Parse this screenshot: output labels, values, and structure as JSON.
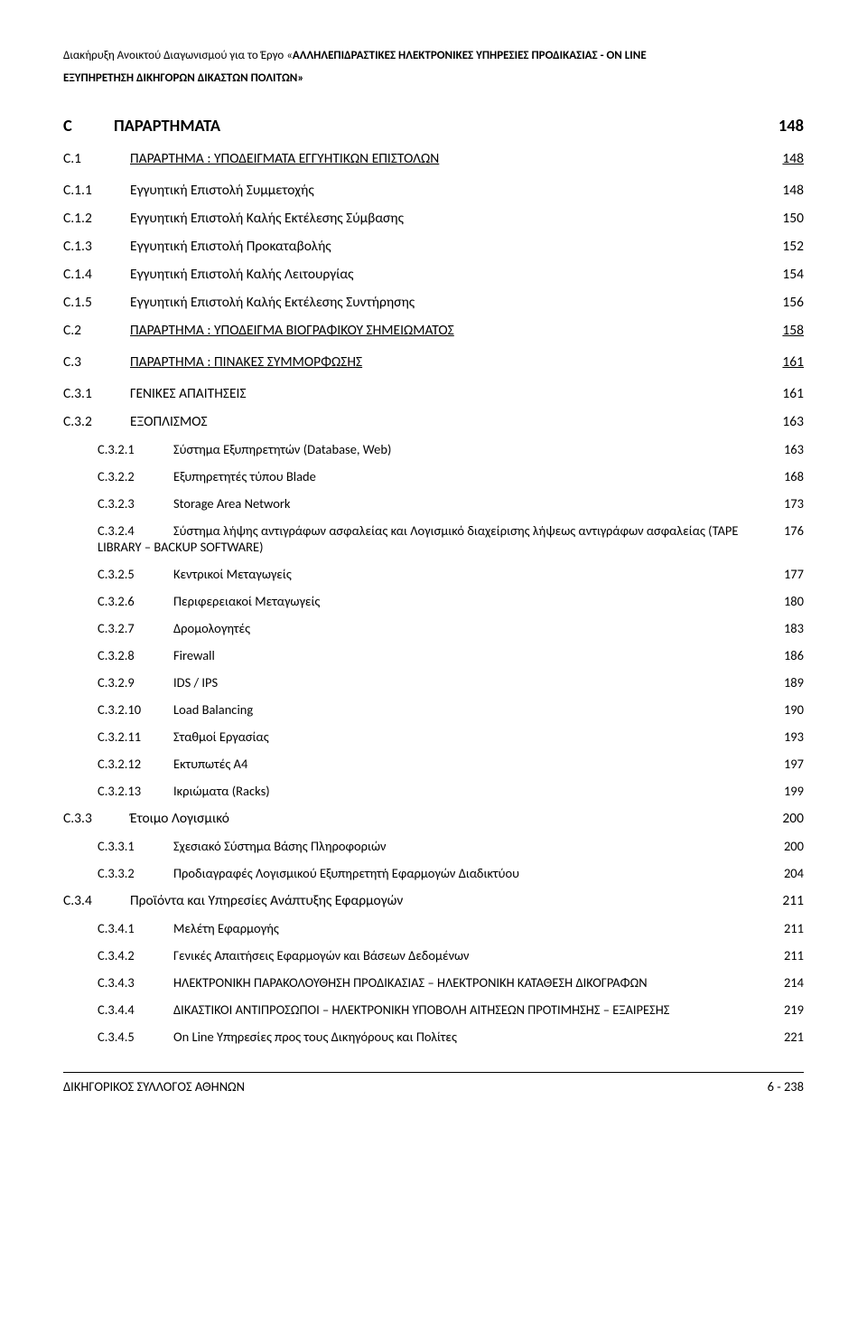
{
  "header": {
    "line1_a": "Διακήρυξη Ανοικτού Διαγωνισμού για το Έργο  «",
    "line1_b": "ΑΛΛΗΛΕΠΙΔΡΑΣΤΙΚΕΣ ΗΛΕΚΤΡΟΝΙΚΕΣ ΥΠΗΡΕΣΙΕΣ ΠΡΟΔΙΚΑΣΙΑΣ - ON LINE",
    "line2": "ΕΞΥΠΗΡΕΤΗΣΗ ΔΙΚΗΓΟΡΩΝ ΔΙΚΑΣΤΩΝ ΠΟΛΙΤΩΝ»"
  },
  "toc": [
    {
      "lvl": 0,
      "num": "C",
      "title": "ΠΑΡΑΡΤΗΜΑΤΑ",
      "page": "148",
      "bold": true,
      "ul": false,
      "fs": "fs18"
    },
    {
      "lvl": 1,
      "num": "C.1",
      "title": "ΠΑΡΑΡΤΗΜΑ : ΥΠΟΔΕΙΓΜΑΤΑ ΕΓΓΥΗΤΙΚΩΝ ΕΠΙΣΤΟΛΩΝ",
      "page": "148",
      "bold": false,
      "ul": true,
      "fs": "fs15"
    },
    {
      "lvl": 2,
      "num": "C.1.1",
      "title": "Εγγυητική Επιστολή Συμμετοχής",
      "page": "148",
      "bold": false,
      "ul": false,
      "fs": "fs15"
    },
    {
      "lvl": 2,
      "num": "C.1.2",
      "title": "Εγγυητική Επιστολή Καλής Εκτέλεσης Σύμβασης",
      "page": "150",
      "bold": false,
      "ul": false,
      "fs": "fs15"
    },
    {
      "lvl": 2,
      "num": "C.1.3",
      "title": "Εγγυητική Επιστολή Προκαταβολής",
      "page": "152",
      "bold": false,
      "ul": false,
      "fs": "fs15"
    },
    {
      "lvl": 2,
      "num": "C.1.4",
      "title": "Εγγυητική Επιστολή Καλής Λειτουργίας",
      "page": "154",
      "bold": false,
      "ul": false,
      "fs": "fs15"
    },
    {
      "lvl": 2,
      "num": "C.1.5",
      "title": "Εγγυητική Επιστολή Καλής Εκτέλεσης Συντήρησης",
      "page": "156",
      "bold": false,
      "ul": false,
      "fs": "fs15"
    },
    {
      "lvl": 1,
      "num": "C.2",
      "title": "ΠΑΡΑΡΤΗΜΑ : ΥΠΟΔΕΙΓΜΑ ΒΙΟΓΡΑΦΙΚΟΥ ΣΗΜΕΙΩΜΑΤΟΣ",
      "page": "158",
      "bold": false,
      "ul": true,
      "fs": "fs15"
    },
    {
      "lvl": 1,
      "num": "C.3",
      "title": "ΠΑΡΑΡΤΗΜΑ : ΠΙΝΑΚΕΣ ΣΥΜΜΟΡΦΩΣΗΣ",
      "page": "161",
      "bold": false,
      "ul": true,
      "fs": "fs15"
    },
    {
      "lvl": 2,
      "num": "C.3.1",
      "title": "ΓΕΝΙΚΕΣ ΑΠΑΙΤΗΣΕΙΣ",
      "page": "161",
      "bold": false,
      "ul": false,
      "fs": "fs15"
    },
    {
      "lvl": 2,
      "num": "C.3.2",
      "title": "ΕΞΟΠΛΙΣΜΟΣ",
      "page": "163",
      "bold": false,
      "ul": false,
      "fs": "fs15"
    },
    {
      "lvl": 3,
      "num": "C.3.2.1",
      "title": "Σύστημα Εξυπηρετητών (Database, Web)",
      "page": "163",
      "bold": false,
      "ul": false,
      "fs": "fs14"
    },
    {
      "lvl": 3,
      "num": "C.3.2.2",
      "title": "Εξυπηρετητές τύπου Blade",
      "page": "168",
      "bold": false,
      "ul": false,
      "fs": "fs14"
    },
    {
      "lvl": 3,
      "num": "C.3.2.3",
      "title": "Storage Area Network",
      "page": "173",
      "bold": false,
      "ul": false,
      "fs": "fs14"
    },
    {
      "lvl": 3,
      "num": "C.3.2.4",
      "title": "Σύστημα λήψης αντιγράφων ασφαλείας και Λογισμικό διαχείρισης λήψεως αντιγράφων ασφαλείας (TAPE LIBRARY – BACKUP SOFTWARE)",
      "page": "176",
      "bold": false,
      "ul": false,
      "fs": "fs14"
    },
    {
      "lvl": 3,
      "num": "C.3.2.5",
      "title": "Κεντρικοί Μεταγωγείς",
      "page": "177",
      "bold": false,
      "ul": false,
      "fs": "fs14"
    },
    {
      "lvl": 3,
      "num": "C.3.2.6",
      "title": "Περιφερειακοί Μεταγωγείς",
      "page": "180",
      "bold": false,
      "ul": false,
      "fs": "fs14"
    },
    {
      "lvl": 3,
      "num": "C.3.2.7",
      "title": "Δρομολογητές",
      "page": "183",
      "bold": false,
      "ul": false,
      "fs": "fs14"
    },
    {
      "lvl": 3,
      "num": "C.3.2.8",
      "title": "Firewall",
      "page": "186",
      "bold": false,
      "ul": false,
      "fs": "fs14"
    },
    {
      "lvl": 3,
      "num": "C.3.2.9",
      "title": "IDS / IPS",
      "page": "189",
      "bold": false,
      "ul": false,
      "fs": "fs14"
    },
    {
      "lvl": 3,
      "num": "C.3.2.10",
      "title": "Load Balancing",
      "page": "190",
      "bold": false,
      "ul": false,
      "fs": "fs14"
    },
    {
      "lvl": 3,
      "num": "C.3.2.11",
      "title": "Σταθμοί Εργασίας",
      "page": "193",
      "bold": false,
      "ul": false,
      "fs": "fs14"
    },
    {
      "lvl": 3,
      "num": "C.3.2.12",
      "title": "Εκτυπωτές Α4",
      "page": "197",
      "bold": false,
      "ul": false,
      "fs": "fs14"
    },
    {
      "lvl": 3,
      "num": "C.3.2.13",
      "title": "Ικριώματα (Racks)",
      "page": "199",
      "bold": false,
      "ul": false,
      "fs": "fs14"
    },
    {
      "lvl": 2,
      "num": "C.3.3",
      "title": "Έτοιμο Λογισμικό",
      "page": "200",
      "bold": false,
      "ul": false,
      "fs": "fs15"
    },
    {
      "lvl": 3,
      "num": "C.3.3.1",
      "title": "Σχεσιακό Σύστημα Βάσης Πληροφοριών",
      "page": "200",
      "bold": false,
      "ul": false,
      "fs": "fs14"
    },
    {
      "lvl": 3,
      "num": "C.3.3.2",
      "title": "Προδιαγραφές Λογισμικού Εξυπηρετητή Εφαρμογών Διαδικτύου",
      "page": "204",
      "bold": false,
      "ul": false,
      "fs": "fs14"
    },
    {
      "lvl": 2,
      "num": "C.3.4",
      "title": "Προϊόντα και Υπηρεσίες Ανάπτυξης Εφαρμογών",
      "page": "211",
      "bold": false,
      "ul": false,
      "fs": "fs15"
    },
    {
      "lvl": 3,
      "num": "C.3.4.1",
      "title": "Μελέτη Εφαρμογής",
      "page": "211",
      "bold": false,
      "ul": false,
      "fs": "fs14"
    },
    {
      "lvl": 3,
      "num": "C.3.4.2",
      "title": "Γενικές Απαιτήσεις Εφαρμογών και Βάσεων Δεδομένων",
      "page": "211",
      "bold": false,
      "ul": false,
      "fs": "fs14"
    },
    {
      "lvl": 3,
      "num": "C.3.4.3",
      "title": "ΗΛΕΚΤΡΟΝΙΚΗ ΠΑΡΑΚΟΛΟΥΘΗΣΗ ΠΡΟΔΙΚΑΣΙΑΣ – ΗΛΕΚΤΡΟΝΙΚΗ ΚΑΤΑΘΕΣΗ ΔΙΚΟΓΡΑΦΩΝ",
      "page": "214",
      "bold": false,
      "ul": false,
      "fs": "fs14"
    },
    {
      "lvl": 3,
      "num": "C.3.4.4",
      "title": "ΔΙΚΑΣΤΙΚΟΙ ΑΝΤΙΠΡΟΣΩΠΟΙ – ΗΛΕΚΤΡΟΝΙΚΗ ΥΠΟΒΟΛΗ ΑΙΤΗΣΕΩΝ ΠΡΟΤΙΜΗΣΗΣ – ΕΞΑΙΡΕΣΗΣ",
      "page": "219",
      "bold": false,
      "ul": false,
      "fs": "fs14",
      "tight": true
    },
    {
      "lvl": 3,
      "num": "C.3.4.5",
      "title": "On Line Υπηρεσίες  προς τους Δικηγόρους και Πολίτες",
      "page": "221",
      "bold": false,
      "ul": false,
      "fs": "fs14"
    }
  ],
  "footer": {
    "left": "ΔΙΚΗΓΟΡΙΚΟΣ ΣΥΛΛΟΓΟΣ ΑΘΗΝΩΝ",
    "right": "6 - 238"
  }
}
